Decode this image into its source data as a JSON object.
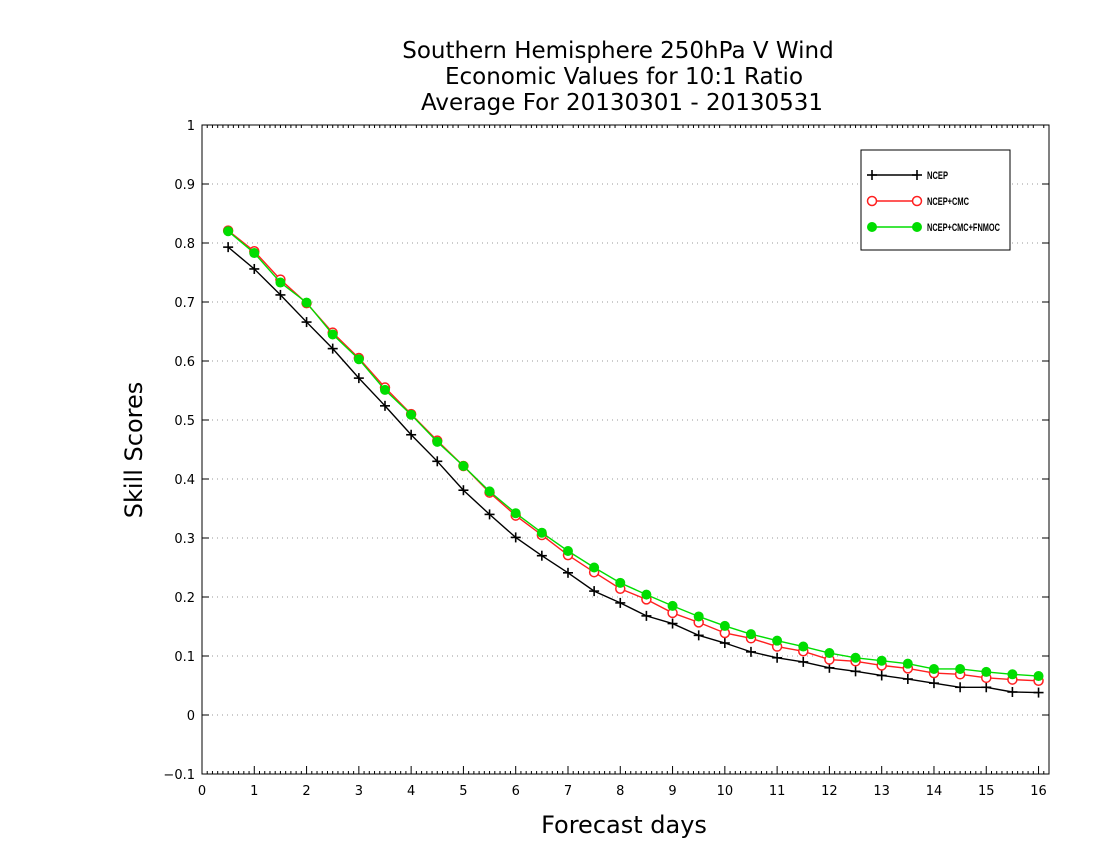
{
  "chart_data": {
    "type": "line",
    "title_lines": [
      "Southern Hemisphere 250hPa V Wind",
      "Economic Values for 10:1 Ratio",
      "Average For 20130301 - 20130531"
    ],
    "xlabel": "Forecast days",
    "ylabel": "Skill Scores",
    "xlim": [
      0,
      16.2
    ],
    "ylim": [
      -0.1,
      1
    ],
    "xticks": [
      "0",
      "1",
      "2",
      "3",
      "4",
      "5",
      "6",
      "7",
      "8",
      "9",
      "10",
      "11",
      "12",
      "13",
      "14",
      "15",
      "16"
    ],
    "yticks": [
      "−0.1",
      "0",
      "0.1",
      "0.2",
      "0.3",
      "0.4",
      "0.5",
      "0.6",
      "0.7",
      "0.8",
      "0.9",
      "1"
    ],
    "grid": true,
    "legend_position": "top-right",
    "x": [
      0.5,
      1,
      1.5,
      2,
      2.5,
      3,
      3.5,
      4,
      4.5,
      5,
      5.5,
      6,
      6.5,
      7,
      7.5,
      8,
      8.5,
      9,
      9.5,
      10,
      10.5,
      11,
      11.5,
      12,
      12.5,
      13,
      13.5,
      14,
      14.5,
      15,
      15.5,
      16
    ],
    "series": [
      {
        "name": "NCEP",
        "color": "#000000",
        "marker": "plus",
        "values": [
          0.793,
          0.756,
          0.712,
          0.666,
          0.621,
          0.571,
          0.524,
          0.475,
          0.43,
          0.381,
          0.34,
          0.301,
          0.27,
          0.241,
          0.21,
          0.19,
          0.168,
          0.155,
          0.135,
          0.122,
          0.107,
          0.097,
          0.09,
          0.08,
          0.074,
          0.067,
          0.061,
          0.054,
          0.047,
          0.047,
          0.039,
          0.038
        ]
      },
      {
        "name": "NCEP+CMC",
        "color": "#ff2020",
        "marker": "open-circle",
        "values": [
          0.821,
          0.786,
          0.738,
          0.698,
          0.648,
          0.605,
          0.555,
          0.51,
          0.465,
          0.422,
          0.377,
          0.338,
          0.305,
          0.271,
          0.242,
          0.214,
          0.196,
          0.173,
          0.157,
          0.139,
          0.13,
          0.116,
          0.108,
          0.094,
          0.091,
          0.084,
          0.079,
          0.071,
          0.069,
          0.063,
          0.06,
          0.058
        ]
      },
      {
        "name": "NCEP+CMC+FNMOC",
        "color": "#00dd00",
        "marker": "filled-circle",
        "values": [
          0.82,
          0.783,
          0.733,
          0.699,
          0.645,
          0.603,
          0.551,
          0.509,
          0.463,
          0.422,
          0.379,
          0.342,
          0.309,
          0.278,
          0.25,
          0.224,
          0.204,
          0.185,
          0.167,
          0.151,
          0.137,
          0.126,
          0.116,
          0.105,
          0.097,
          0.092,
          0.087,
          0.078,
          0.078,
          0.073,
          0.069,
          0.066
        ]
      }
    ]
  }
}
